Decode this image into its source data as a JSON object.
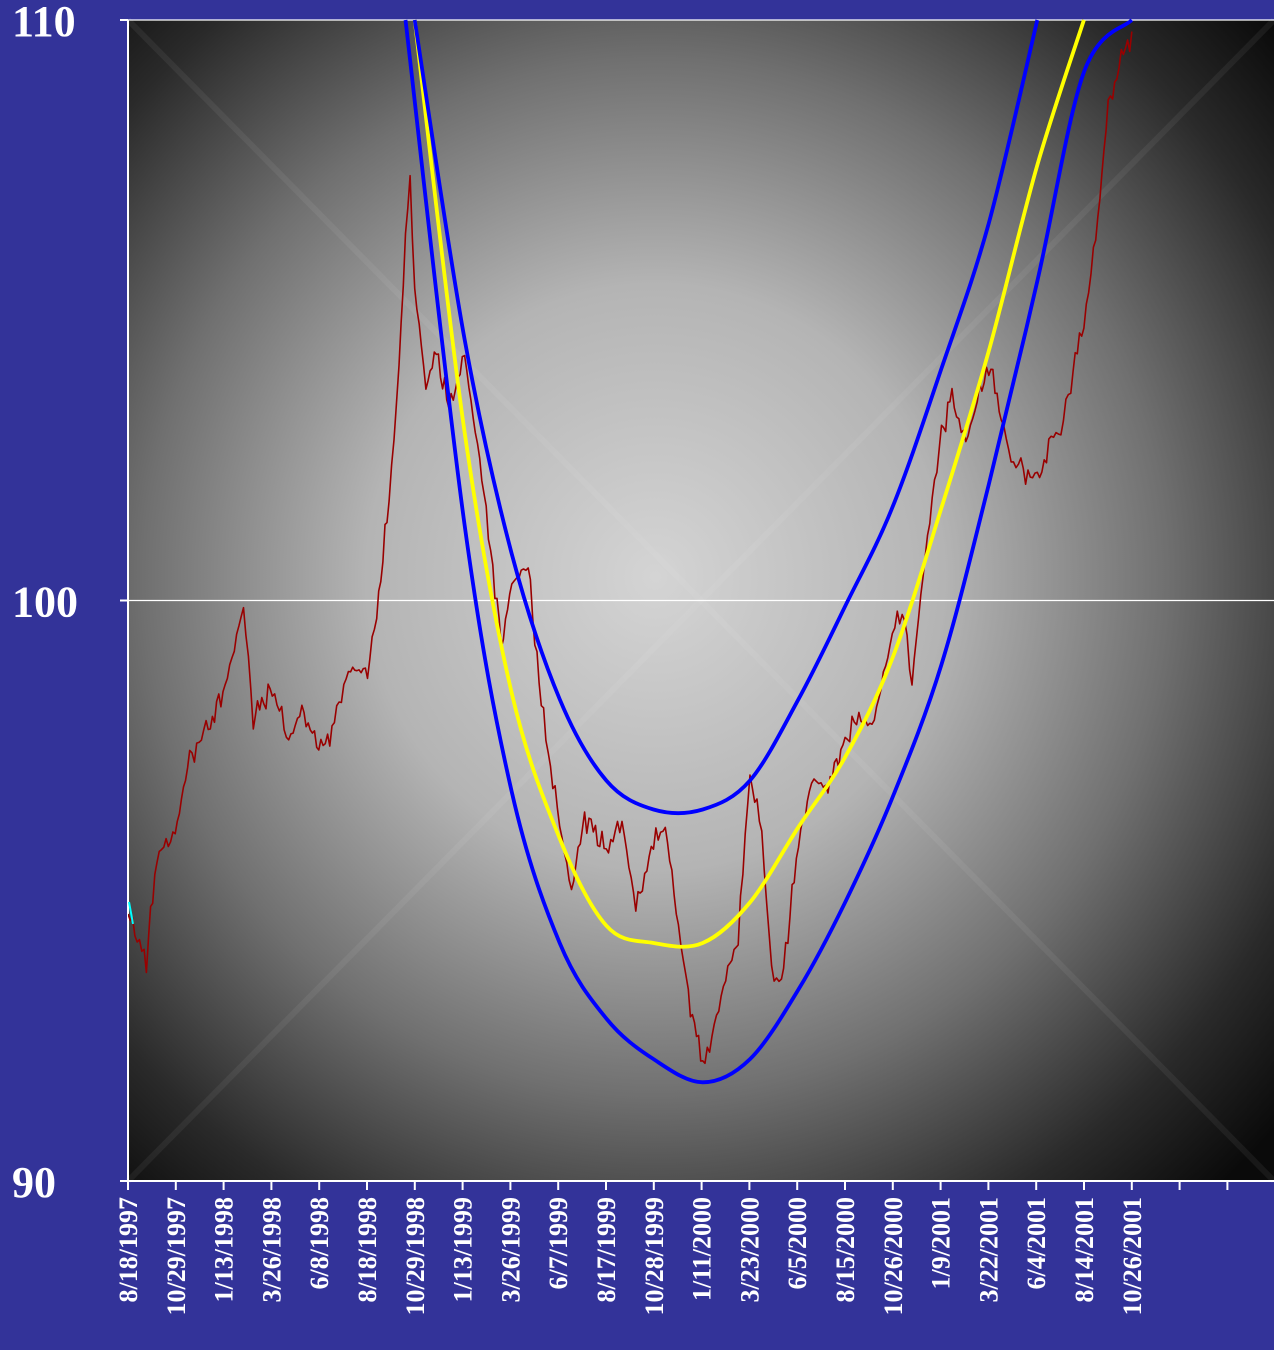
{
  "chart_data": {
    "type": "line",
    "title": "",
    "xlabel": "",
    "ylabel": "",
    "ylim": [
      90,
      110
    ],
    "y_ticks": [
      "110",
      "100",
      "90"
    ],
    "x_tick_labels": [
      "8/18/1997",
      "10/29/1997",
      "1/13/1998",
      "3/26/1998",
      "6/8/1998",
      "8/18/1998",
      "10/29/1998",
      "1/13/1999",
      "3/26/1999",
      "6/7/1999",
      "8/17/1999",
      "10/28/1999",
      "1/11/2000",
      "3/23/2000",
      "6/5/2000",
      "8/15/2000",
      "10/26/2000",
      "1/9/2001",
      "3/22/2001",
      "6/4/2001",
      "8/14/2001",
      "10/26/2001"
    ],
    "grid": "horizontal",
    "legend": "none",
    "colors": {
      "background_outer": "#333399",
      "plot_center": "#d4d4d4",
      "plot_edge": "#0a0a0a",
      "price": "#990000",
      "center_curve": "#ffff00",
      "band_curves": "#0000ff",
      "start_marker": "#00ffff"
    },
    "series": [
      {
        "name": "",
        "color": "#990000",
        "points": [
          [
            "8/18/1997",
            94.6
          ],
          [
            "9/15/1997",
            93.8
          ],
          [
            "10/1/1997",
            95.6
          ],
          [
            "10/29/1997",
            96.0
          ],
          [
            "11/20/1997",
            97.3
          ],
          [
            "12/15/1997",
            97.7
          ],
          [
            "1/13/1998",
            98.5
          ],
          [
            "2/10/1998",
            99.9
          ],
          [
            "2/25/1998",
            98.0
          ],
          [
            "3/26/1998",
            98.5
          ],
          [
            "4/20/1998",
            97.6
          ],
          [
            "5/10/1998",
            98.1
          ],
          [
            "6/8/1998",
            97.4
          ],
          [
            "6/25/1998",
            97.8
          ],
          [
            "7/20/1998",
            98.8
          ],
          [
            "8/18/1998",
            98.8
          ],
          [
            "9/1/1998",
            99.8
          ],
          [
            "9/20/1998",
            101.7
          ],
          [
            "10/5/1998",
            104.0
          ],
          [
            "10/15/1998",
            106.2
          ],
          [
            "10/22/1998",
            107.3
          ],
          [
            "10/29/1998",
            105.4
          ],
          [
            "11/15/1998",
            103.7
          ],
          [
            "12/1/1998",
            104.3
          ],
          [
            "12/20/1998",
            103.3
          ],
          [
            "1/13/1999",
            104.2
          ],
          [
            "2/5/1999",
            102.4
          ],
          [
            "2/25/1999",
            100.6
          ],
          [
            "3/10/1999",
            99.2
          ],
          [
            "3/26/1999",
            100.3
          ],
          [
            "4/20/1999",
            100.6
          ],
          [
            "5/10/1999",
            98.2
          ],
          [
            "6/7/1999",
            96.1
          ],
          [
            "6/25/1999",
            95.0
          ],
          [
            "7/15/1999",
            96.3
          ],
          [
            "8/17/1999",
            95.7
          ],
          [
            "9/10/1999",
            96.2
          ],
          [
            "10/1/1999",
            94.7
          ],
          [
            "10/28/1999",
            95.8
          ],
          [
            "11/15/1999",
            96.1
          ],
          [
            "12/5/1999",
            94.4
          ],
          [
            "12/20/1999",
            93.2
          ],
          [
            "1/11/2000",
            92.0
          ],
          [
            "1/25/2000",
            92.5
          ],
          [
            "2/15/2000",
            93.5
          ],
          [
            "3/5/2000",
            94.2
          ],
          [
            "3/23/2000",
            97.0
          ],
          [
            "4/10/2000",
            96.0
          ],
          [
            "4/25/2000",
            93.6
          ],
          [
            "5/10/2000",
            93.4
          ],
          [
            "6/5/2000",
            95.8
          ],
          [
            "6/25/2000",
            96.9
          ],
          [
            "7/20/2000",
            96.8
          ],
          [
            "8/15/2000",
            97.6
          ],
          [
            "9/5/2000",
            98.0
          ],
          [
            "9/25/2000",
            97.8
          ],
          [
            "10/26/2000",
            99.4
          ],
          [
            "11/10/2000",
            99.9
          ],
          [
            "11/25/2000",
            98.6
          ],
          [
            "12/15/2000",
            100.8
          ],
          [
            "1/9/2001",
            102.9
          ],
          [
            "1/25/2001",
            103.5
          ],
          [
            "2/15/2001",
            102.7
          ],
          [
            "3/1/2001",
            103.3
          ],
          [
            "3/22/2001",
            104.1
          ],
          [
            "4/10/2001",
            103.2
          ],
          [
            "4/25/2001",
            102.4
          ],
          [
            "5/10/2001",
            102.3
          ],
          [
            "6/4/2001",
            102.0
          ],
          [
            "6/25/2001",
            102.8
          ],
          [
            "7/10/2001",
            102.9
          ],
          [
            "7/25/2001",
            103.8
          ],
          [
            "8/14/2001",
            104.8
          ],
          [
            "9/1/2001",
            106.2
          ],
          [
            "9/20/2001",
            108.5
          ],
          [
            "10/10/2001",
            109.3
          ],
          [
            "10/26/2001",
            109.8
          ]
        ]
      },
      {
        "name": "",
        "color": "#ffff00",
        "points": [
          [
            "10/29/1998",
            110.0
          ],
          [
            "1/13/1999",
            102.9
          ],
          [
            "3/26/1999",
            98.4
          ],
          [
            "6/7/1999",
            95.9
          ],
          [
            "8/17/1999",
            94.4
          ],
          [
            "10/28/1999",
            94.1
          ],
          [
            "1/11/2000",
            94.1
          ],
          [
            "3/23/2000",
            94.8
          ],
          [
            "6/5/2000",
            96.1
          ],
          [
            "8/15/2000",
            97.3
          ],
          [
            "10/26/2000",
            99.0
          ],
          [
            "1/9/2001",
            101.6
          ],
          [
            "3/22/2001",
            104.3
          ],
          [
            "6/4/2001",
            107.5
          ],
          [
            "8/14/2001",
            110.0
          ]
        ]
      },
      {
        "name": "",
        "color": "#0000ff",
        "points": [
          [
            "10/15/1998",
            110.0
          ],
          [
            "1/13/1999",
            101.3
          ],
          [
            "3/26/1999",
            96.7
          ],
          [
            "6/7/1999",
            94.1
          ],
          [
            "8/17/1999",
            92.8
          ],
          [
            "10/28/1999",
            92.1
          ],
          [
            "1/11/2000",
            91.7
          ],
          [
            "3/23/2000",
            92.1
          ],
          [
            "6/5/2000",
            93.3
          ],
          [
            "8/15/2000",
            94.8
          ],
          [
            "10/26/2000",
            96.6
          ],
          [
            "1/9/2001",
            98.9
          ],
          [
            "3/22/2001",
            102.0
          ],
          [
            "6/4/2001",
            105.5
          ],
          [
            "8/14/2001",
            109.1
          ],
          [
            "10/26/2001",
            110.0
          ]
        ]
      },
      {
        "name": "",
        "color": "#0000ff",
        "points": [
          [
            "10/29/1998",
            110.0
          ],
          [
            "1/13/1999",
            104.5
          ],
          [
            "3/26/1999",
            100.8
          ],
          [
            "6/7/1999",
            98.3
          ],
          [
            "8/17/1999",
            96.9
          ],
          [
            "10/28/1999",
            96.4
          ],
          [
            "1/11/2000",
            96.4
          ],
          [
            "3/23/2000",
            96.9
          ],
          [
            "6/5/2000",
            98.3
          ],
          [
            "8/15/2000",
            99.9
          ],
          [
            "10/26/2000",
            101.6
          ],
          [
            "1/9/2001",
            104.0
          ],
          [
            "3/22/2001",
            106.5
          ],
          [
            "6/4/2001",
            110.0
          ]
        ]
      }
    ]
  }
}
